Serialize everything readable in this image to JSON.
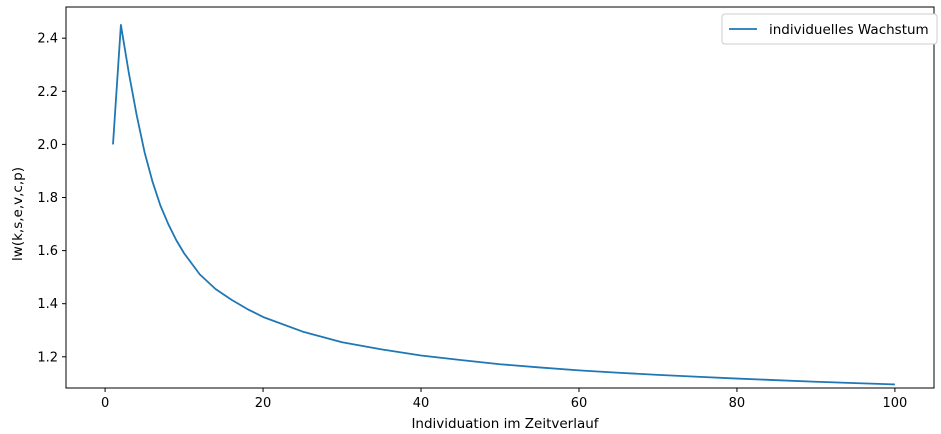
{
  "chart_data": {
    "type": "line",
    "xlabel": "Individuation im Zeitverlauf",
    "ylabel": "lw(k,s,e,v,c,p)",
    "xlim": [
      -4.95,
      104.95
    ],
    "ylim": [
      1.0825,
      2.5175
    ],
    "xticks": [
      0,
      20,
      40,
      60,
      80,
      100
    ],
    "yticks": [
      1.2,
      1.4,
      1.6,
      1.8,
      2.0,
      2.2,
      2.4
    ],
    "xtick_labels": [
      "0",
      "20",
      "40",
      "60",
      "80",
      "100"
    ],
    "ytick_labels": [
      "1.2",
      "1.4",
      "1.6",
      "1.8",
      "2.0",
      "2.2",
      "2.4"
    ],
    "grid": false,
    "legend": {
      "position": "top-right"
    },
    "series": [
      {
        "name": "individuelles Wachstum",
        "color": "#1f77b4",
        "x": [
          1,
          2,
          3,
          4,
          5,
          6,
          7,
          8,
          9,
          10,
          12,
          14,
          16,
          18,
          20,
          25,
          30,
          35,
          40,
          45,
          50,
          55,
          60,
          65,
          70,
          75,
          80,
          85,
          90,
          95,
          100
        ],
        "y": [
          2.0,
          2.45,
          2.27,
          2.11,
          1.97,
          1.86,
          1.77,
          1.7,
          1.64,
          1.59,
          1.51,
          1.455,
          1.415,
          1.38,
          1.35,
          1.295,
          1.255,
          1.228,
          1.205,
          1.188,
          1.172,
          1.16,
          1.149,
          1.14,
          1.132,
          1.125,
          1.118,
          1.112,
          1.106,
          1.101,
          1.096
        ]
      }
    ]
  }
}
